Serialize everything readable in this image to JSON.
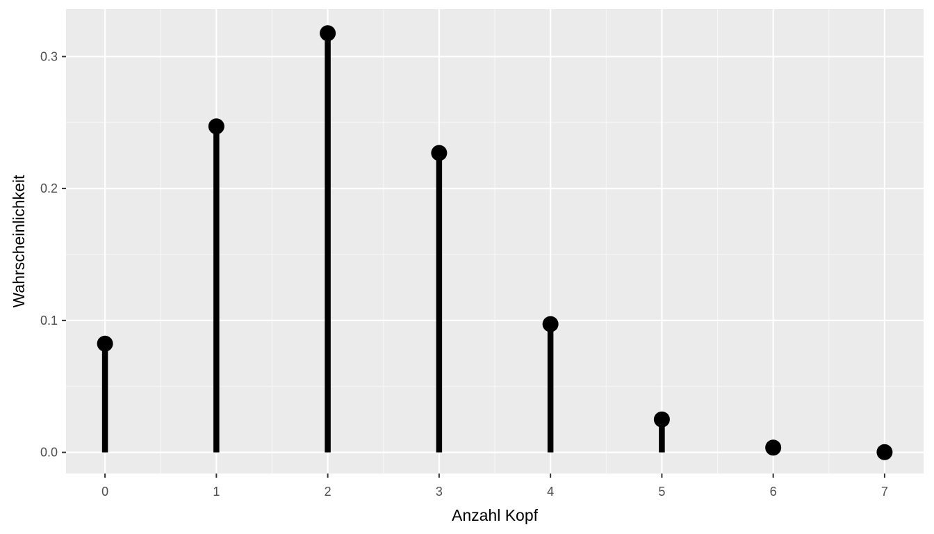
{
  "chart_data": {
    "type": "lollipop",
    "xlabel": "Anzahl Kopf",
    "ylabel": "Wahrscheinlichkeit",
    "x": [
      0,
      1,
      2,
      3,
      4,
      5,
      6,
      7
    ],
    "values": [
      0.0824,
      0.2471,
      0.3177,
      0.2269,
      0.0972,
      0.025,
      0.0036,
      0.0002
    ],
    "xlim": [
      -0.35,
      7.35
    ],
    "ylim": [
      -0.016,
      0.336
    ],
    "x_ticks": [
      0,
      1,
      2,
      3,
      4,
      5,
      6,
      7
    ],
    "x_tick_labels": [
      "0",
      "1",
      "2",
      "3",
      "4",
      "5",
      "6",
      "7"
    ],
    "y_ticks": [
      0.0,
      0.1,
      0.2,
      0.3
    ],
    "y_tick_labels": [
      "0.0",
      "0.1",
      "0.2",
      "0.3"
    ],
    "grid": true,
    "colors": {
      "panel_background": "#ebebeb",
      "grid_major": "#ffffff",
      "grid_minor": "#f7f7f7",
      "marks": "#000000"
    }
  }
}
